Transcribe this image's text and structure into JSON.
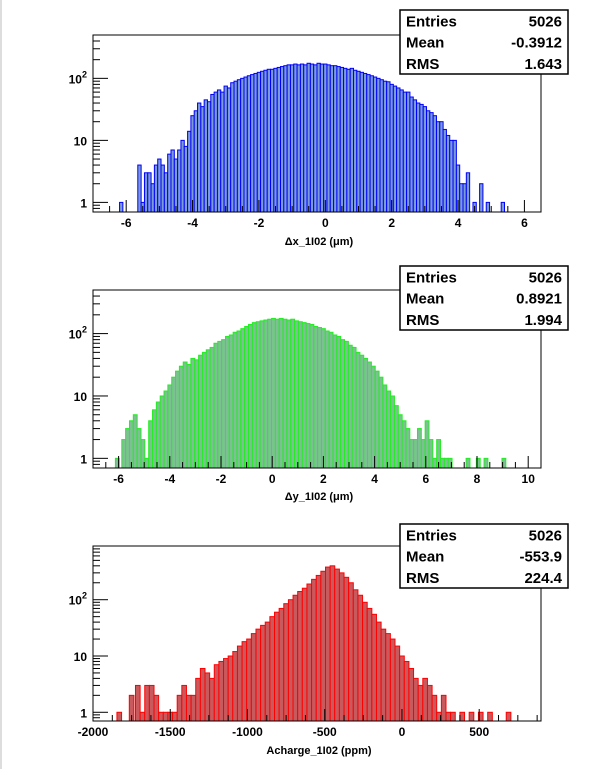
{
  "chart_data": [
    {
      "type": "bar",
      "title": "",
      "xlabel": "Δx_1I02 (μm)",
      "ylabel": "",
      "xlim": [
        -7,
        6.5
      ],
      "ylim": [
        0.7,
        500
      ],
      "y_scale": "log",
      "grid": false,
      "bar_color": "#7b9bd4",
      "edge_color": "#0000ff",
      "x_ticks": [
        "-6",
        "-4",
        "-2",
        "0",
        "2",
        "4",
        "6"
      ],
      "y_ticks": [
        "1",
        "10",
        "10²"
      ],
      "stats": {
        "Entries": "5026",
        "Mean": "-0.3912",
        "RMS": "1.643"
      },
      "bins": {
        "x": [
          -6.15,
          -5.6,
          -5.5,
          -5.4,
          -5.3,
          -5.2,
          -5.1,
          -5.0,
          -4.9,
          -4.8,
          -4.7,
          -4.6,
          -4.5,
          -4.4,
          -4.3,
          -4.2,
          -4.1,
          -4.0,
          -3.9,
          -3.8,
          -3.7,
          -3.6,
          -3.5,
          -3.4,
          -3.3,
          -3.2,
          -3.1,
          -3.0,
          -2.9,
          -2.8,
          -2.7,
          -2.6,
          -2.5,
          -2.4,
          -2.3,
          -2.2,
          -2.1,
          -2.0,
          -1.9,
          -1.8,
          -1.7,
          -1.6,
          -1.5,
          -1.4,
          -1.3,
          -1.2,
          -1.1,
          -1.0,
          -0.9,
          -0.8,
          -0.7,
          -0.6,
          -0.5,
          -0.4,
          -0.3,
          -0.2,
          -0.1,
          0.0,
          0.1,
          0.2,
          0.3,
          0.4,
          0.5,
          0.6,
          0.7,
          0.8,
          0.9,
          1.0,
          1.1,
          1.2,
          1.3,
          1.4,
          1.5,
          1.6,
          1.7,
          1.8,
          1.9,
          2.0,
          2.1,
          2.2,
          2.3,
          2.4,
          2.5,
          2.6,
          2.7,
          2.8,
          2.9,
          3.0,
          3.1,
          3.2,
          3.3,
          3.4,
          3.5,
          3.6,
          3.7,
          3.8,
          3.9,
          4.0,
          4.1,
          4.2,
          4.3,
          4.5,
          4.7,
          4.9,
          5.35
        ],
        "values": [
          1,
          4,
          1,
          3,
          3,
          2,
          4,
          5,
          4,
          3,
          6,
          7,
          5,
          7,
          10,
          8,
          14,
          25,
          30,
          40,
          35,
          45,
          42,
          55,
          60,
          65,
          60,
          75,
          70,
          85,
          90,
          95,
          100,
          105,
          110,
          115,
          120,
          125,
          130,
          135,
          140,
          140,
          145,
          150,
          155,
          160,
          165,
          165,
          170,
          165,
          170,
          165,
          175,
          170,
          165,
          175,
          170,
          170,
          165,
          160,
          160,
          155,
          150,
          145,
          140,
          145,
          135,
          130,
          125,
          120,
          115,
          110,
          105,
          100,
          95,
          90,
          88,
          80,
          75,
          70,
          65,
          60,
          60,
          50,
          45,
          40,
          38,
          35,
          30,
          28,
          25,
          20,
          20,
          15,
          12,
          10,
          10,
          4,
          2,
          2,
          3,
          1,
          2,
          1,
          1
        ]
      }
    },
    {
      "type": "bar",
      "title": "",
      "xlabel": "Δy_1I02 (μm)",
      "ylabel": "",
      "xlim": [
        -7,
        10.5
      ],
      "ylim": [
        0.7,
        500
      ],
      "y_scale": "log",
      "grid": false,
      "bar_color": "#7fbf95",
      "edge_color": "#22ee22",
      "x_ticks": [
        "-6",
        "-4",
        "-2",
        "0",
        "2",
        "4",
        "6",
        "8",
        "10"
      ],
      "y_ticks": [
        "1",
        "10",
        "10²"
      ],
      "stats": {
        "Entries": "5026",
        "Mean": "0.8921",
        "RMS": "1.994"
      },
      "bins": {
        "x": [
          -6.05,
          -5.8,
          -5.65,
          -5.5,
          -5.35,
          -5.2,
          -5.05,
          -4.9,
          -4.75,
          -4.6,
          -4.45,
          -4.3,
          -4.15,
          -4.0,
          -3.85,
          -3.7,
          -3.55,
          -3.4,
          -3.25,
          -3.1,
          -2.95,
          -2.8,
          -2.65,
          -2.5,
          -2.35,
          -2.2,
          -2.05,
          -1.9,
          -1.75,
          -1.6,
          -1.45,
          -1.3,
          -1.15,
          -1.0,
          -0.85,
          -0.7,
          -0.55,
          -0.4,
          -0.25,
          -0.1,
          0.05,
          0.2,
          0.35,
          0.5,
          0.65,
          0.8,
          0.95,
          1.1,
          1.25,
          1.4,
          1.55,
          1.7,
          1.85,
          2.0,
          2.15,
          2.3,
          2.45,
          2.6,
          2.75,
          2.9,
          3.05,
          3.2,
          3.35,
          3.5,
          3.65,
          3.8,
          3.95,
          4.1,
          4.25,
          4.4,
          4.55,
          4.7,
          4.85,
          5.0,
          5.15,
          5.3,
          5.45,
          5.6,
          5.75,
          5.9,
          6.05,
          6.2,
          6.35,
          6.5,
          6.65,
          6.8,
          6.95,
          7.65,
          8.05,
          8.35,
          9.05
        ],
        "values": [
          1,
          2,
          3,
          4,
          5,
          3,
          2,
          1,
          4,
          6,
          8,
          10,
          12,
          15,
          20,
          25,
          30,
          35,
          32,
          40,
          38,
          45,
          50,
          55,
          60,
          70,
          75,
          80,
          90,
          95,
          105,
          110,
          120,
          130,
          140,
          150,
          155,
          160,
          165,
          170,
          175,
          170,
          175,
          170,
          165,
          170,
          160,
          155,
          150,
          145,
          140,
          130,
          125,
          120,
          110,
          105,
          95,
          90,
          80,
          75,
          65,
          60,
          50,
          45,
          40,
          35,
          30,
          25,
          20,
          15,
          12,
          10,
          7,
          5,
          4,
          3,
          2,
          2,
          3,
          2,
          4,
          2,
          1,
          2,
          1,
          1,
          1,
          1,
          1,
          1,
          1
        ]
      }
    },
    {
      "type": "bar",
      "title": "",
      "xlabel": "Acharge_1I02 (ppm)",
      "ylabel": "",
      "xlim": [
        -2000,
        900
      ],
      "ylim": [
        0.7,
        900
      ],
      "y_scale": "log",
      "grid": false,
      "bar_color": "#c85a5e",
      "edge_color": "#ff0000",
      "x_ticks": [
        "-2000",
        "-1500",
        "-1000",
        "-500",
        "0",
        "500"
      ],
      "y_ticks": [
        "1",
        "10",
        "10²"
      ],
      "stats": {
        "Entries": "5026",
        "Mean": "-553.9",
        "RMS": "224.4"
      },
      "bins": {
        "x": [
          -1830,
          -1750,
          -1710,
          -1680,
          -1650,
          -1620,
          -1590,
          -1560,
          -1530,
          -1500,
          -1470,
          -1440,
          -1410,
          -1380,
          -1350,
          -1320,
          -1290,
          -1260,
          -1230,
          -1200,
          -1170,
          -1140,
          -1110,
          -1080,
          -1050,
          -1020,
          -990,
          -960,
          -930,
          -900,
          -870,
          -840,
          -810,
          -780,
          -750,
          -720,
          -690,
          -660,
          -630,
          -600,
          -570,
          -540,
          -510,
          -480,
          -450,
          -420,
          -390,
          -360,
          -330,
          -300,
          -270,
          -240,
          -210,
          -180,
          -150,
          -120,
          -90,
          -60,
          -30,
          0,
          30,
          60,
          90,
          120,
          150,
          180,
          210,
          240,
          270,
          300,
          330,
          390,
          450,
          510,
          570,
          690
        ],
        "values": [
          1,
          2,
          3,
          1,
          3,
          3,
          2,
          1,
          1,
          1,
          1,
          2,
          3,
          2,
          2,
          4,
          6,
          5,
          4,
          7,
          8,
          9,
          10,
          12,
          15,
          18,
          20,
          25,
          30,
          35,
          40,
          50,
          60,
          70,
          85,
          100,
          120,
          140,
          160,
          190,
          230,
          270,
          320,
          380,
          400,
          350,
          300,
          250,
          200,
          150,
          120,
          90,
          70,
          55,
          40,
          30,
          25,
          20,
          15,
          10,
          8,
          6,
          4,
          3,
          4,
          3,
          2,
          1,
          2,
          1,
          1,
          1,
          1,
          1,
          1,
          1
        ]
      }
    }
  ]
}
